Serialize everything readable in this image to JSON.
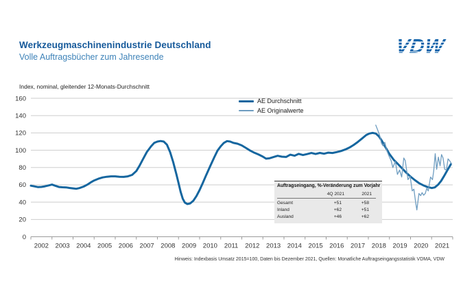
{
  "header": {
    "title": "Werkzeugmaschinenindustrie Deutschland",
    "subtitle": "Volle Auftragsbücher zum Jahresende",
    "logo_text": "VDW",
    "brand_color": "#1565ab"
  },
  "chart_data": {
    "type": "line",
    "title": "Index, nominal, gleitender 12-Monats-Durchschnitt",
    "x_start": 2002,
    "x_end": 2022,
    "x_tick_labels": [
      "2002",
      "2003",
      "2004",
      "2005",
      "2006",
      "2007",
      "2008",
      "2009",
      "2010",
      "2011",
      "2012",
      "2013",
      "2014",
      "2015",
      "2016",
      "2017",
      "2018",
      "2019",
      "2020",
      "2021"
    ],
    "y_ticks": [
      0,
      20,
      40,
      60,
      80,
      100,
      120,
      140,
      160
    ],
    "ylim": [
      0,
      160
    ],
    "grid": true,
    "legend_position": "top-center",
    "grid_color": "#cdcdcd",
    "axis_color": "#9a9a9a",
    "series": [
      {
        "name": "AE Durchschnitt",
        "color": "#15669f",
        "stroke_width": 3,
        "points": [
          [
            2002.0,
            59
          ],
          [
            2002.17,
            58.2
          ],
          [
            2002.33,
            57.4
          ],
          [
            2002.5,
            57.6
          ],
          [
            2002.67,
            58.3
          ],
          [
            2002.83,
            59.2
          ],
          [
            2003.0,
            60.3
          ],
          [
            2003.17,
            58.8
          ],
          [
            2003.33,
            57.5
          ],
          [
            2003.5,
            57.2
          ],
          [
            2003.67,
            57.0
          ],
          [
            2003.83,
            56.4
          ],
          [
            2004.0,
            55.9
          ],
          [
            2004.15,
            55.4
          ],
          [
            2004.3,
            56.2
          ],
          [
            2004.5,
            58.0
          ],
          [
            2004.7,
            60.5
          ],
          [
            2004.85,
            63.0
          ],
          [
            2005.0,
            65.0
          ],
          [
            2005.2,
            67.0
          ],
          [
            2005.4,
            68.5
          ],
          [
            2005.6,
            69.3
          ],
          [
            2005.8,
            69.8
          ],
          [
            2006.0,
            69.8
          ],
          [
            2006.2,
            69.3
          ],
          [
            2006.4,
            69.2
          ],
          [
            2006.6,
            69.8
          ],
          [
            2006.8,
            71.5
          ],
          [
            2007.0,
            76.0
          ],
          [
            2007.15,
            82.0
          ],
          [
            2007.3,
            89.0
          ],
          [
            2007.5,
            98.0
          ],
          [
            2007.7,
            104.5
          ],
          [
            2007.85,
            108.5
          ],
          [
            2008.0,
            110.0
          ],
          [
            2008.15,
            110.6
          ],
          [
            2008.3,
            110.0
          ],
          [
            2008.45,
            106.5
          ],
          [
            2008.6,
            98.0
          ],
          [
            2008.75,
            86.0
          ],
          [
            2008.9,
            72.0
          ],
          [
            2009.0,
            62.0
          ],
          [
            2009.1,
            52.0
          ],
          [
            2009.2,
            44.0
          ],
          [
            2009.3,
            39.5
          ],
          [
            2009.42,
            37.8
          ],
          [
            2009.55,
            38.5
          ],
          [
            2009.7,
            41.5
          ],
          [
            2009.85,
            47.0
          ],
          [
            2010.0,
            54.0
          ],
          [
            2010.15,
            62.0
          ],
          [
            2010.3,
            70.5
          ],
          [
            2010.5,
            81.5
          ],
          [
            2010.7,
            92.0
          ],
          [
            2010.85,
            99.5
          ],
          [
            2011.0,
            104.5
          ],
          [
            2011.15,
            108.5
          ],
          [
            2011.3,
            110.5
          ],
          [
            2011.45,
            110.0
          ],
          [
            2011.6,
            108.5
          ],
          [
            2011.8,
            107.5
          ],
          [
            2012.0,
            105.5
          ],
          [
            2012.2,
            102.5
          ],
          [
            2012.4,
            99.5
          ],
          [
            2012.6,
            97.0
          ],
          [
            2012.8,
            95.0
          ],
          [
            2013.0,
            92.5
          ],
          [
            2013.15,
            90.2
          ],
          [
            2013.3,
            90.6
          ],
          [
            2013.5,
            92.0
          ],
          [
            2013.7,
            93.5
          ],
          [
            2013.9,
            92.5
          ],
          [
            2014.1,
            92.2
          ],
          [
            2014.3,
            94.8
          ],
          [
            2014.5,
            93.6
          ],
          [
            2014.7,
            95.8
          ],
          [
            2014.9,
            94.4
          ],
          [
            2015.1,
            95.5
          ],
          [
            2015.3,
            96.8
          ],
          [
            2015.5,
            95.6
          ],
          [
            2015.7,
            96.9
          ],
          [
            2015.9,
            95.9
          ],
          [
            2016.1,
            97.2
          ],
          [
            2016.3,
            96.8
          ],
          [
            2016.5,
            97.8
          ],
          [
            2016.7,
            99.0
          ],
          [
            2016.9,
            100.8
          ],
          [
            2017.1,
            103.0
          ],
          [
            2017.3,
            106.0
          ],
          [
            2017.5,
            109.5
          ],
          [
            2017.7,
            113.5
          ],
          [
            2017.9,
            117.5
          ],
          [
            2018.05,
            119.3
          ],
          [
            2018.2,
            120.0
          ],
          [
            2018.35,
            119.3
          ],
          [
            2018.5,
            116.0
          ],
          [
            2018.65,
            110.5
          ],
          [
            2018.8,
            104.0
          ],
          [
            2019.0,
            95.5
          ],
          [
            2019.2,
            89.0
          ],
          [
            2019.4,
            84.0
          ],
          [
            2019.6,
            79.0
          ],
          [
            2019.8,
            74.0
          ],
          [
            2020.0,
            69.5
          ],
          [
            2020.2,
            65.5
          ],
          [
            2020.4,
            62.0
          ],
          [
            2020.6,
            59.5
          ],
          [
            2020.8,
            57.5
          ],
          [
            2021.0,
            56.3
          ],
          [
            2021.15,
            57.0
          ],
          [
            2021.3,
            60.0
          ],
          [
            2021.45,
            64.5
          ],
          [
            2021.6,
            70.5
          ],
          [
            2021.75,
            77.0
          ],
          [
            2021.92,
            84.0
          ]
        ]
      },
      {
        "name": "AE Originalwerte",
        "color": "#6d9cc0",
        "stroke_width": 1.3,
        "points": [
          [
            2018.35,
            129
          ],
          [
            2018.45,
            123
          ],
          [
            2018.55,
            116
          ],
          [
            2018.62,
            108
          ],
          [
            2018.7,
            105
          ],
          [
            2018.78,
            109
          ],
          [
            2018.88,
            99
          ],
          [
            2019.0,
            92
          ],
          [
            2019.08,
            88
          ],
          [
            2019.16,
            80
          ],
          [
            2019.28,
            87
          ],
          [
            2019.38,
            72
          ],
          [
            2019.48,
            77
          ],
          [
            2019.58,
            69
          ],
          [
            2019.68,
            91
          ],
          [
            2019.75,
            88
          ],
          [
            2019.88,
            66
          ],
          [
            2019.98,
            70
          ],
          [
            2020.08,
            53
          ],
          [
            2020.16,
            55
          ],
          [
            2020.24,
            40
          ],
          [
            2020.3,
            31
          ],
          [
            2020.4,
            50
          ],
          [
            2020.48,
            47.5
          ],
          [
            2020.55,
            51
          ],
          [
            2020.62,
            48
          ],
          [
            2020.7,
            50
          ],
          [
            2020.77,
            56
          ],
          [
            2020.84,
            53
          ],
          [
            2020.95,
            69
          ],
          [
            2021.04,
            66
          ],
          [
            2021.1,
            76
          ],
          [
            2021.17,
            96
          ],
          [
            2021.24,
            78
          ],
          [
            2021.32,
            92
          ],
          [
            2021.4,
            82
          ],
          [
            2021.47,
            95
          ],
          [
            2021.54,
            91
          ],
          [
            2021.62,
            78
          ],
          [
            2021.7,
            77
          ],
          [
            2021.78,
            90
          ],
          [
            2021.85,
            88
          ],
          [
            2021.95,
            84
          ]
        ]
      }
    ]
  },
  "inset_table": {
    "title": "Auftragseingang, %-Veränderung zum Vorjahr",
    "columns": [
      "4Q 2021",
      "2021"
    ],
    "rows": [
      {
        "label": "Gesamt",
        "q4": "+51",
        "year": "+58"
      },
      {
        "label": "Inland",
        "q4": "+62",
        "year": "+51"
      },
      {
        "label": "Ausland",
        "q4": "+46",
        "year": "+62"
      }
    ]
  },
  "footnote": "Hinweis: Indexbasis Umsatz 2015=100, Daten bis Dezember 2021, Quellen: Monatliche Auftragseingangsstatistik VDMA, VDW"
}
